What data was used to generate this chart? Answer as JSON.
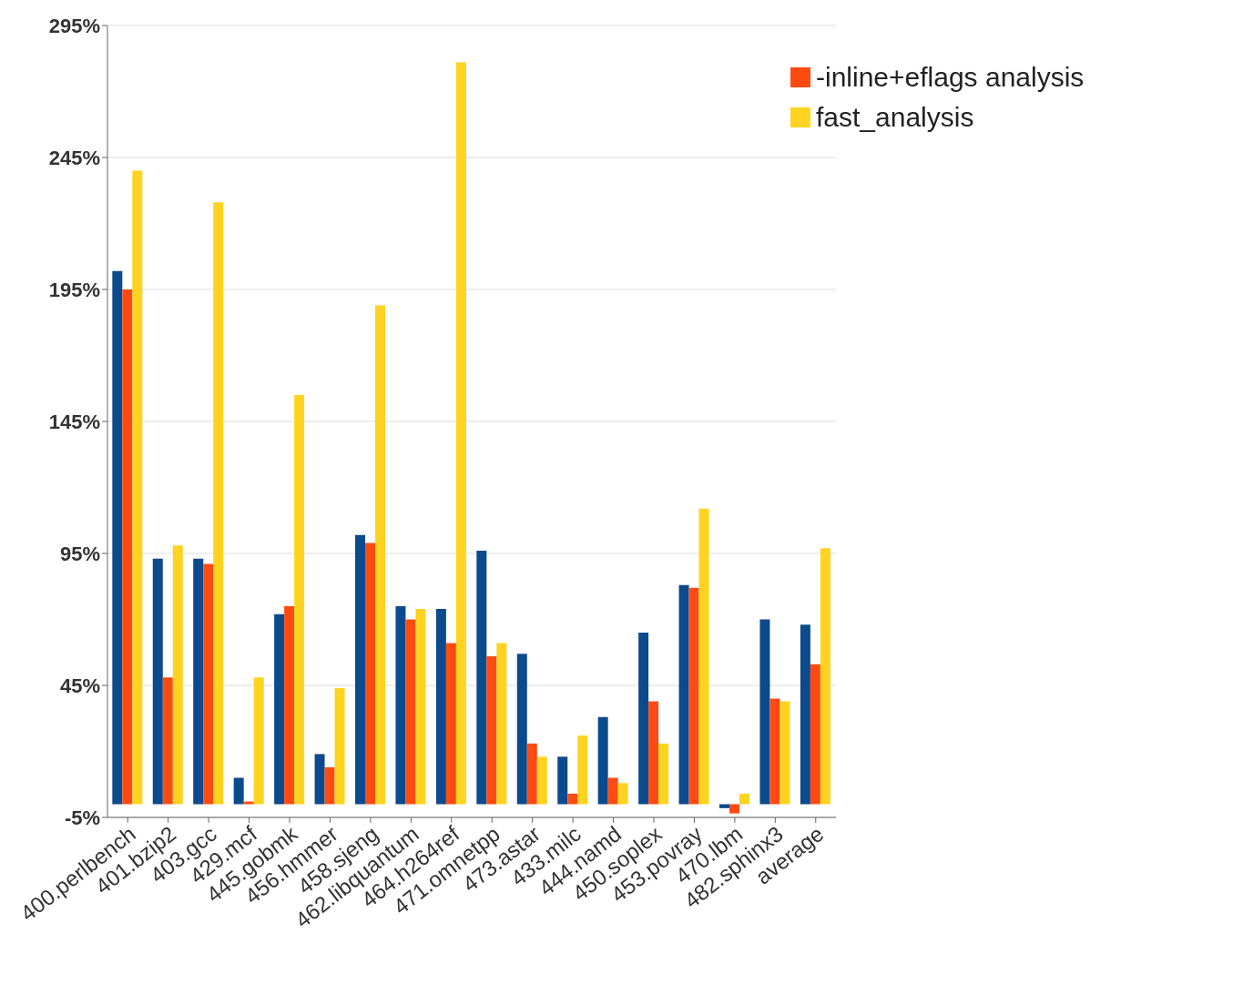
{
  "chart_data": {
    "type": "bar",
    "categories": [
      "400.perlbench",
      "401.bzip2",
      "403.gcc",
      "429.mcf",
      "445.gobmk",
      "456.hmmer",
      "458.sjeng",
      "462.libquantum",
      "464.h264ref",
      "471.omnetpp",
      "473.astar",
      "433.milc",
      "444.namd",
      "450.soplex",
      "453.povray",
      "470.lbm",
      "482.sphinx3",
      "average"
    ],
    "series": [
      {
        "color": "#0b4a8c",
        "values": [
          202,
          93,
          93,
          10,
          72,
          19,
          102,
          75,
          74,
          96,
          57,
          18,
          33,
          65,
          83,
          -1.5,
          70,
          68
        ]
      },
      {
        "name": "-inline+eflags analysis",
        "color": "#ff4b12",
        "values": [
          195,
          48,
          91,
          1,
          75,
          14,
          99,
          70,
          61,
          56,
          23,
          4,
          10,
          39,
          82,
          -3.5,
          40,
          53
        ]
      },
      {
        "name": "fast_analysis",
        "color": "#ffd320",
        "values": [
          240,
          98,
          228,
          48,
          155,
          44,
          189,
          74,
          281,
          61,
          18,
          26,
          8,
          23,
          112,
          4,
          39,
          97
        ]
      }
    ],
    "ylim": [
      -5,
      295
    ],
    "yticks": [
      {
        "value": -5,
        "label": "-5%"
      },
      {
        "value": 45,
        "label": "45%"
      },
      {
        "value": 95,
        "label": "95%"
      },
      {
        "value": 145,
        "label": "145%"
      },
      {
        "value": 195,
        "label": "195%"
      },
      {
        "value": 245,
        "label": "245%"
      },
      {
        "value": 295,
        "label": "295%"
      }
    ],
    "grid": "y",
    "legend": "top right"
  }
}
